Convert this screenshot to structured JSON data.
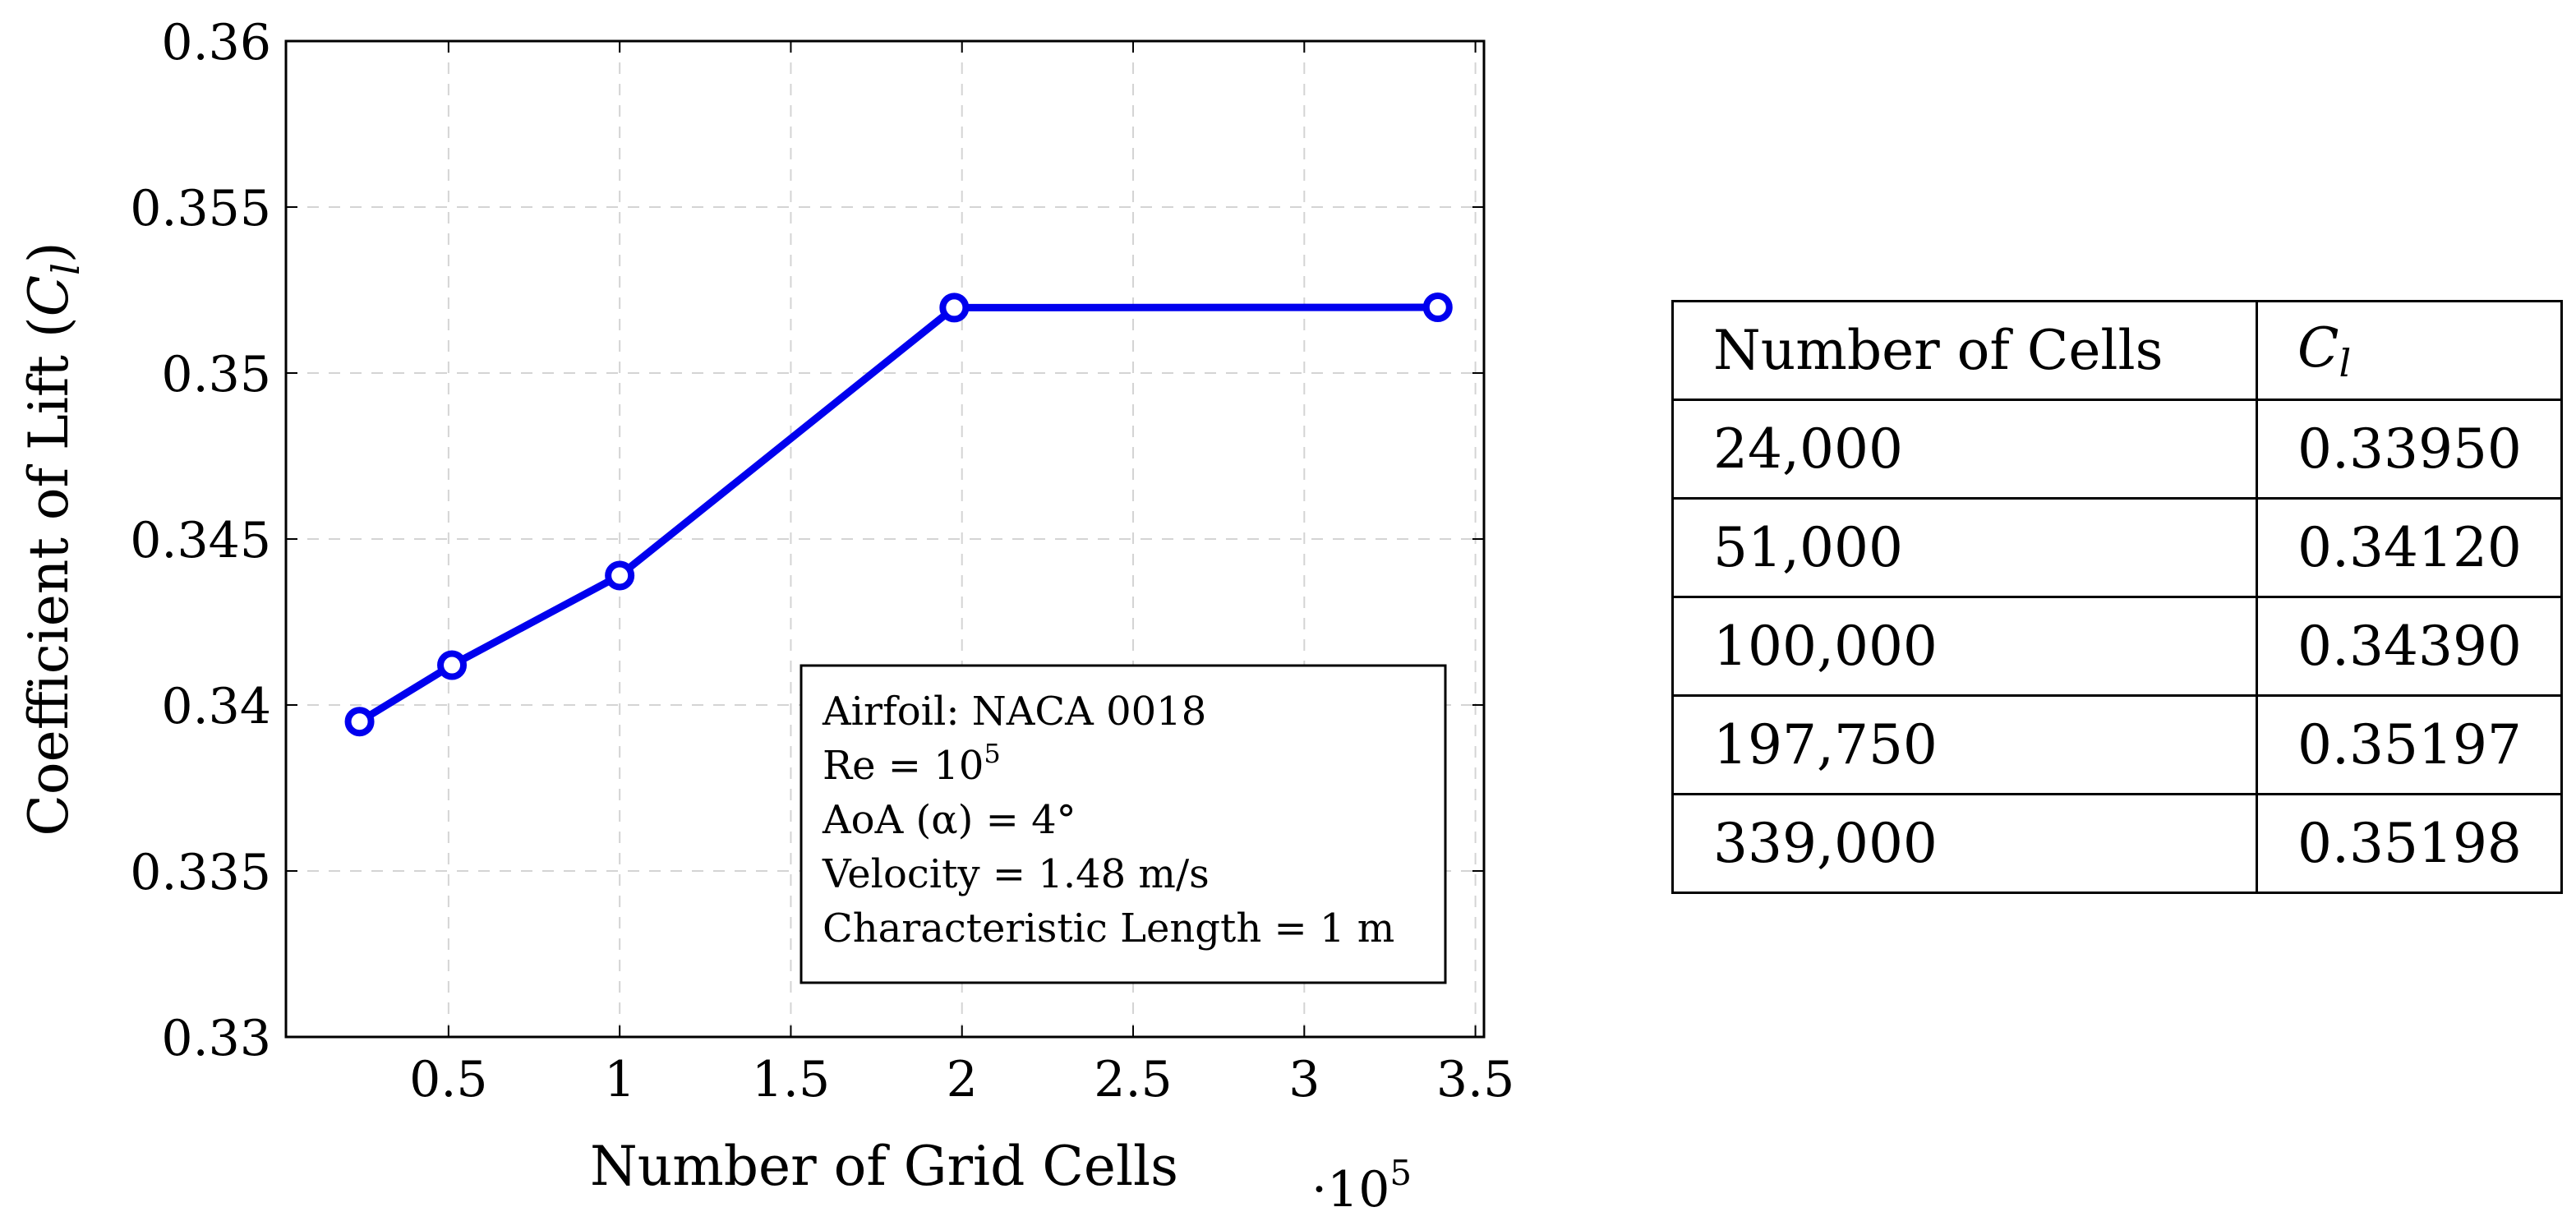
{
  "chart_data": {
    "type": "line",
    "title": "",
    "xlabel": "Number of Grid Cells",
    "x_multiplier_label": "·10",
    "x_multiplier_exp": "5",
    "ylabel_prefix": "Coefficient of Lift (",
    "ylabel_symbol": "C",
    "ylabel_sub": "l",
    "ylabel_suffix": ")",
    "xlim": [
      0.025,
      3.525
    ],
    "ylim": [
      0.33,
      0.36
    ],
    "xticks": [
      0.5,
      1,
      1.5,
      2,
      2.5,
      3,
      3.5
    ],
    "xtick_labels": [
      "0.5",
      "1",
      "1.5",
      "2",
      "2.5",
      "3",
      "3.5"
    ],
    "yticks": [
      0.33,
      0.335,
      0.34,
      0.345,
      0.35,
      0.355,
      0.36
    ],
    "ytick_labels": [
      "0.33",
      "0.335",
      "0.34",
      "0.345",
      "0.35",
      "0.355",
      "0.36"
    ],
    "grid": true,
    "series": [
      {
        "name": "Cl",
        "color": "#0000ee",
        "marker": "circle",
        "x": [
          0.24,
          0.51,
          1.0,
          1.9775,
          3.39
        ],
        "y": [
          0.3395,
          0.3412,
          0.3439,
          0.35197,
          0.35198
        ]
      }
    ]
  },
  "annotation": {
    "lines": [
      {
        "text": "Airfoil: NACA 0018"
      },
      {
        "text": "Re = 10",
        "sup": "5"
      },
      {
        "text": "AoA (α) = 4°"
      },
      {
        "text": "Velocity = 1.48 m/s"
      },
      {
        "text": "Characteristic Length = 1 m"
      }
    ]
  },
  "table": {
    "header": {
      "cells": "Number of Cells",
      "cl_symbol": "C",
      "cl_sub": "l"
    },
    "rows": [
      {
        "cells": "24,000",
        "cl": "0.33950"
      },
      {
        "cells": "51,000",
        "cl": "0.34120"
      },
      {
        "cells": "100,000",
        "cl": "0.34390"
      },
      {
        "cells": "197,750",
        "cl": "0.35197"
      },
      {
        "cells": "339,000",
        "cl": "0.35198"
      }
    ]
  }
}
